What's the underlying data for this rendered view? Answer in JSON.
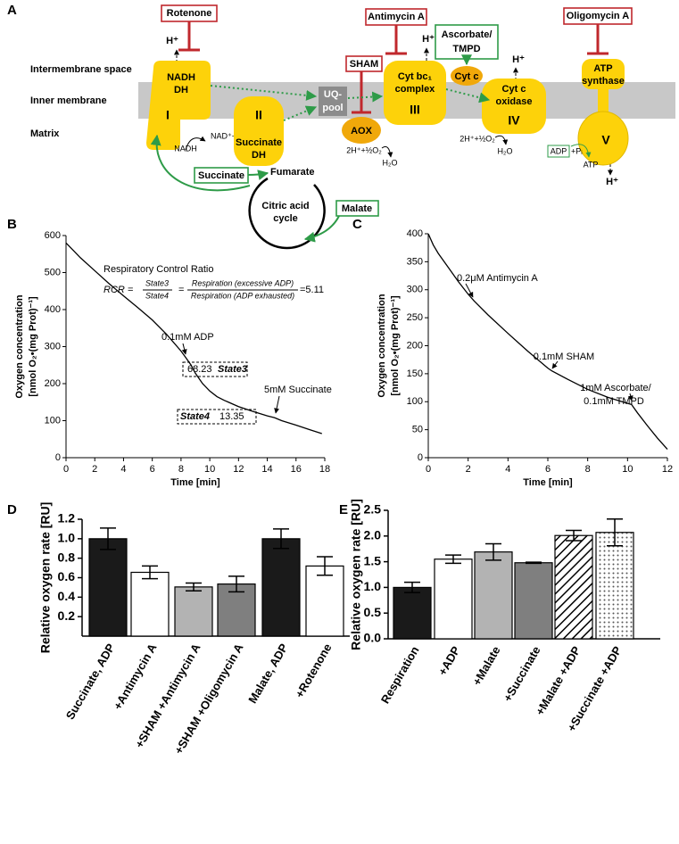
{
  "diagram": {
    "panel": "A",
    "regions": [
      "Intermembrane space",
      "Inner membrane",
      "Matrix"
    ],
    "inhibitors": {
      "rotenone": "Rotenone",
      "antimycin": "Antimycin A",
      "sham": "SHAM",
      "oligomycin": "Oligomycin A"
    },
    "ascorbate": [
      "Ascorbate/",
      "TMPD"
    ],
    "protons": [
      "H⁺",
      "H⁺",
      "H⁺",
      "H⁺"
    ],
    "complex_i": {
      "name": [
        "NADH",
        "DH"
      ],
      "numeral": "I",
      "substrate": "NADH",
      "product": "NAD⁺+H⁺"
    },
    "complex_ii": {
      "name": [
        "Succinate",
        "DH"
      ],
      "numeral": "II"
    },
    "uq_pool": [
      "UQ-",
      "pool"
    ],
    "aox": {
      "name": "AOX",
      "substrate": "2H⁺+½O₂",
      "product": "H₂O"
    },
    "complex_iii": {
      "name": [
        "Cyt bc₁",
        "complex"
      ],
      "numeral": "III"
    },
    "cyt_c": "Cyt c",
    "complex_iv": {
      "name": [
        "Cyt c",
        "oxidase"
      ],
      "numeral": "IV",
      "substrate": "2H⁺+½O₂",
      "product": "H₂O"
    },
    "complex_v": {
      "name": [
        "ATP",
        "synthase"
      ],
      "numeral": "V",
      "substrate": "ADP",
      "phosphate": "+Pᵢ",
      "product": "ATP"
    },
    "cycle": {
      "name": [
        "Citric acid",
        "cycle"
      ],
      "succinate": "Succinate",
      "fumarate": "Fumarate",
      "malate": "Malate"
    }
  },
  "chart_data": [
    {
      "type": "line",
      "panel": "B",
      "x": [
        0,
        0.5,
        1,
        2,
        3,
        4,
        5,
        6,
        7,
        8,
        8.3,
        8.7,
        9,
        9.5,
        10,
        10.5,
        11,
        12,
        13,
        14,
        14.5,
        15,
        16,
        17,
        17.8
      ],
      "values": [
        580,
        560,
        540,
        505,
        470,
        437,
        405,
        372,
        333,
        288,
        272,
        250,
        228,
        200,
        180,
        165,
        155,
        138,
        125,
        113,
        108,
        100,
        88,
        75,
        65
      ],
      "color": "#000000",
      "xlabel": "Time [min]",
      "ylabel": [
        "Oxygen concentration",
        "[nmol O₂•(mg Prot)⁻¹]"
      ],
      "xlim": [
        0,
        18
      ],
      "ylim": [
        0,
        600
      ],
      "xticks": [
        0,
        2,
        4,
        6,
        8,
        10,
        12,
        14,
        16,
        18
      ],
      "yticks": [
        0,
        100,
        200,
        300,
        400,
        500,
        600
      ],
      "formula": {
        "title": "Respiratory Control Ratio",
        "lhs": "RCR =",
        "num1": "State3",
        "den1": "State4",
        "eq": "=",
        "num2": "Respiration (excessive ADP)",
        "den2": "Respiration (ADP exhausted)",
        "result": "=5.11"
      },
      "annotations": [
        "0.1mM ADP",
        "68.23",
        "State3",
        "State4",
        "13.35",
        "5mM Succinate"
      ]
    },
    {
      "type": "line",
      "panel": "C",
      "x": [
        0,
        0.25,
        0.5,
        1,
        1.5,
        2,
        2.3,
        3,
        4,
        5,
        6,
        6.2,
        7,
        8,
        9,
        10,
        10.2,
        10.5,
        11,
        11.5,
        12
      ],
      "values": [
        400,
        380,
        365,
        340,
        315,
        292,
        280,
        255,
        222,
        190,
        160,
        155,
        140,
        122,
        108,
        97,
        95,
        80,
        57,
        35,
        15
      ],
      "color": "#000000",
      "xlabel": "Time [min]",
      "ylabel": [
        "Oxygen concentration",
        "[nmol O₂•(mg Prot)⁻¹]"
      ],
      "xlim": [
        0,
        12
      ],
      "ylim": [
        0,
        400
      ],
      "xticks": [
        0,
        2,
        4,
        6,
        8,
        10,
        12
      ],
      "yticks": [
        0,
        50,
        100,
        150,
        200,
        250,
        300,
        350,
        400
      ],
      "annotations": [
        "0.2μM Antimycin A",
        "0.1mM SHAM",
        "1mM Ascorbate/",
        "0.1mM TMPD"
      ]
    },
    {
      "type": "bar",
      "panel": "D",
      "categories": [
        "Succinate, ADP",
        "+Antimycin A",
        "+SHAM +Antimycin A",
        "+SHAM +Oligomycin A",
        "Malate, ADP",
        "+Rotenone"
      ],
      "values": [
        1.0,
        0.655,
        0.505,
        0.535,
        1.0,
        0.72
      ],
      "errors": [
        0.11,
        0.065,
        0.04,
        0.08,
        0.1,
        0.095
      ],
      "fills": [
        "#1a1a1a",
        "#ffffff",
        "#b3b3b3",
        "#7f7f7f",
        "#1a1a1a",
        "#ffffff"
      ],
      "ylabel": "Relative oxygen rate [RU]",
      "ylim": [
        0,
        1.2
      ],
      "yticks": [
        0.2,
        0.4,
        0.6,
        0.8,
        {
          "value": 1,
          "label": "1.0"
        },
        1.2
      ]
    },
    {
      "type": "bar",
      "panel": "E",
      "categories": [
        "Respiration",
        "+ADP",
        "+Malate",
        "+Succinate",
        "+Malate +ADP",
        "+Succinate +ADP"
      ],
      "values": [
        1.0,
        1.55,
        1.69,
        1.48,
        2.01,
        2.07
      ],
      "errors": [
        0.1,
        0.08,
        0.16,
        0.01,
        0.1,
        0.26
      ],
      "fills": [
        "#1a1a1a",
        "#ffffff",
        "#b3b3b3",
        "#7f7f7f",
        "hatch",
        "dots"
      ],
      "ylabel": "Relative oxygen rate [RU]",
      "ylim": [
        0,
        2.5
      ],
      "yticks": [
        {
          "value": 0,
          "label": "0.0"
        },
        0.5,
        {
          "value": 1,
          "label": "1.0"
        },
        1.5,
        {
          "value": 2,
          "label": "2.0"
        },
        2.5
      ]
    }
  ]
}
